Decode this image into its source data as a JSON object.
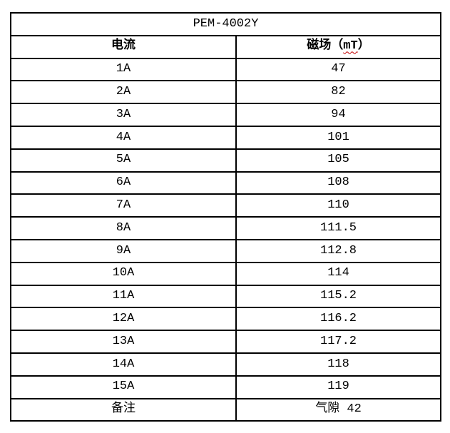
{
  "table": {
    "title": "PEM-4002Y",
    "columns": {
      "current_label": "电流",
      "field_label_prefix": "磁场（",
      "field_unit": "mT",
      "field_label_suffix": "）"
    },
    "rows": [
      {
        "current": "1A",
        "field": "47"
      },
      {
        "current": "2A",
        "field": "82"
      },
      {
        "current": "3A",
        "field": "94"
      },
      {
        "current": "4A",
        "field": "101"
      },
      {
        "current": "5A",
        "field": "105"
      },
      {
        "current": "6A",
        "field": "108"
      },
      {
        "current": "7A",
        "field": "110"
      },
      {
        "current": "8A",
        "field": "111.5"
      },
      {
        "current": "9A",
        "field": "112.8"
      },
      {
        "current": "10A",
        "field": "114"
      },
      {
        "current": "11A",
        "field": "115.2"
      },
      {
        "current": "12A",
        "field": "116.2"
      },
      {
        "current": "13A",
        "field": "117.2"
      },
      {
        "current": "14A",
        "field": "118"
      },
      {
        "current": "15A",
        "field": "119"
      }
    ],
    "note": {
      "label": "备注",
      "value": "气隙 42"
    }
  },
  "colors": {
    "text": "#000000",
    "border": "#000000",
    "background": "#ffffff",
    "spellcheck_squiggle": "#c00000"
  }
}
